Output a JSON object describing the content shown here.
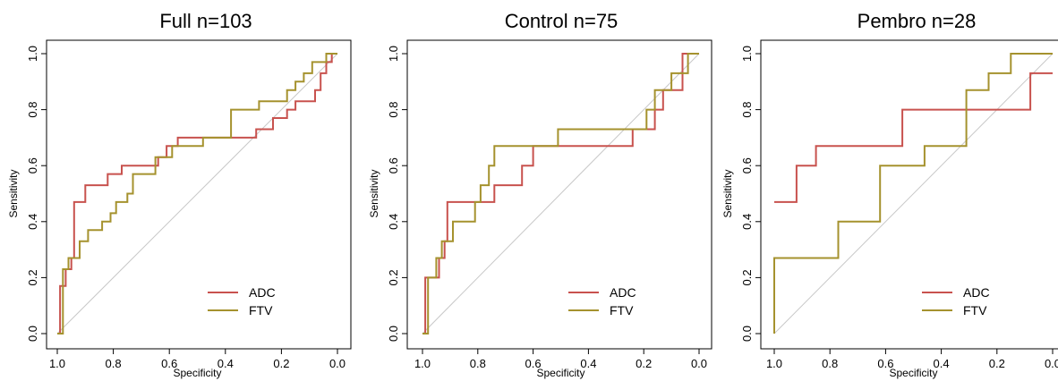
{
  "chart_data": [
    {
      "type": "line",
      "title": "Full n=103",
      "xlabel": "Specificity",
      "ylabel": "Sensitivity",
      "xlim": [
        1.0,
        0.0
      ],
      "ylim": [
        0.0,
        1.0
      ],
      "x_ticks": [
        "1.0",
        "0.8",
        "0.6",
        "0.4",
        "0.2",
        "0.0"
      ],
      "y_ticks": [
        "0.0",
        "0.2",
        "0.4",
        "0.6",
        "0.8",
        "1.0"
      ],
      "legend_position": "bottom-right",
      "grid": false,
      "series": [
        {
          "name": "ADC",
          "color": "#c8524e",
          "points": [
            [
              1.0,
              0.0
            ],
            [
              0.99,
              0.0
            ],
            [
              0.99,
              0.17
            ],
            [
              0.97,
              0.17
            ],
            [
              0.97,
              0.23
            ],
            [
              0.95,
              0.23
            ],
            [
              0.95,
              0.27
            ],
            [
              0.94,
              0.27
            ],
            [
              0.94,
              0.47
            ],
            [
              0.9,
              0.47
            ],
            [
              0.9,
              0.53
            ],
            [
              0.82,
              0.53
            ],
            [
              0.82,
              0.57
            ],
            [
              0.77,
              0.57
            ],
            [
              0.77,
              0.6
            ],
            [
              0.64,
              0.6
            ],
            [
              0.64,
              0.63
            ],
            [
              0.61,
              0.63
            ],
            [
              0.61,
              0.67
            ],
            [
              0.57,
              0.67
            ],
            [
              0.57,
              0.7
            ],
            [
              0.29,
              0.7
            ],
            [
              0.29,
              0.73
            ],
            [
              0.23,
              0.73
            ],
            [
              0.23,
              0.77
            ],
            [
              0.18,
              0.77
            ],
            [
              0.18,
              0.8
            ],
            [
              0.15,
              0.8
            ],
            [
              0.15,
              0.83
            ],
            [
              0.08,
              0.83
            ],
            [
              0.08,
              0.87
            ],
            [
              0.06,
              0.87
            ],
            [
              0.06,
              0.93
            ],
            [
              0.04,
              0.93
            ],
            [
              0.04,
              0.97
            ],
            [
              0.02,
              0.97
            ],
            [
              0.02,
              1.0
            ],
            [
              0.0,
              1.0
            ]
          ]
        },
        {
          "name": "FTV",
          "color": "#a5922e",
          "points": [
            [
              1.0,
              0.0
            ],
            [
              0.98,
              0.0
            ],
            [
              0.98,
              0.23
            ],
            [
              0.96,
              0.23
            ],
            [
              0.96,
              0.27
            ],
            [
              0.92,
              0.27
            ],
            [
              0.92,
              0.33
            ],
            [
              0.89,
              0.33
            ],
            [
              0.89,
              0.37
            ],
            [
              0.84,
              0.37
            ],
            [
              0.84,
              0.4
            ],
            [
              0.81,
              0.4
            ],
            [
              0.81,
              0.43
            ],
            [
              0.79,
              0.43
            ],
            [
              0.79,
              0.47
            ],
            [
              0.75,
              0.47
            ],
            [
              0.75,
              0.5
            ],
            [
              0.73,
              0.5
            ],
            [
              0.73,
              0.57
            ],
            [
              0.65,
              0.57
            ],
            [
              0.65,
              0.63
            ],
            [
              0.59,
              0.63
            ],
            [
              0.59,
              0.67
            ],
            [
              0.48,
              0.67
            ],
            [
              0.48,
              0.7
            ],
            [
              0.38,
              0.7
            ],
            [
              0.38,
              0.8
            ],
            [
              0.28,
              0.8
            ],
            [
              0.28,
              0.83
            ],
            [
              0.18,
              0.83
            ],
            [
              0.18,
              0.87
            ],
            [
              0.15,
              0.87
            ],
            [
              0.15,
              0.9
            ],
            [
              0.12,
              0.9
            ],
            [
              0.12,
              0.93
            ],
            [
              0.09,
              0.93
            ],
            [
              0.09,
              0.97
            ],
            [
              0.04,
              0.97
            ],
            [
              0.04,
              1.0
            ],
            [
              0.0,
              1.0
            ]
          ]
        }
      ]
    },
    {
      "type": "line",
      "title": "Control n=75",
      "xlabel": "Specificity",
      "ylabel": "Sensitivity",
      "xlim": [
        1.0,
        0.0
      ],
      "ylim": [
        0.0,
        1.0
      ],
      "x_ticks": [
        "1.0",
        "0.8",
        "0.6",
        "0.4",
        "0.2",
        "0.0"
      ],
      "y_ticks": [
        "0.0",
        "0.2",
        "0.4",
        "0.6",
        "0.8",
        "1.0"
      ],
      "legend_position": "bottom-right",
      "grid": false,
      "series": [
        {
          "name": "ADC",
          "color": "#c8524e",
          "points": [
            [
              1.0,
              0.0
            ],
            [
              0.99,
              0.0
            ],
            [
              0.99,
              0.2
            ],
            [
              0.94,
              0.2
            ],
            [
              0.94,
              0.27
            ],
            [
              0.92,
              0.27
            ],
            [
              0.92,
              0.33
            ],
            [
              0.91,
              0.33
            ],
            [
              0.91,
              0.47
            ],
            [
              0.74,
              0.47
            ],
            [
              0.74,
              0.53
            ],
            [
              0.64,
              0.53
            ],
            [
              0.64,
              0.6
            ],
            [
              0.6,
              0.6
            ],
            [
              0.6,
              0.67
            ],
            [
              0.24,
              0.67
            ],
            [
              0.24,
              0.73
            ],
            [
              0.16,
              0.73
            ],
            [
              0.16,
              0.8
            ],
            [
              0.13,
              0.8
            ],
            [
              0.13,
              0.87
            ],
            [
              0.06,
              0.87
            ],
            [
              0.06,
              1.0
            ],
            [
              0.0,
              1.0
            ]
          ]
        },
        {
          "name": "FTV",
          "color": "#a5922e",
          "points": [
            [
              1.0,
              0.0
            ],
            [
              0.98,
              0.0
            ],
            [
              0.98,
              0.2
            ],
            [
              0.95,
              0.2
            ],
            [
              0.95,
              0.27
            ],
            [
              0.93,
              0.27
            ],
            [
              0.93,
              0.33
            ],
            [
              0.89,
              0.33
            ],
            [
              0.89,
              0.4
            ],
            [
              0.81,
              0.4
            ],
            [
              0.81,
              0.47
            ],
            [
              0.79,
              0.47
            ],
            [
              0.79,
              0.53
            ],
            [
              0.76,
              0.53
            ],
            [
              0.76,
              0.6
            ],
            [
              0.74,
              0.6
            ],
            [
              0.74,
              0.67
            ],
            [
              0.51,
              0.67
            ],
            [
              0.51,
              0.73
            ],
            [
              0.19,
              0.73
            ],
            [
              0.19,
              0.8
            ],
            [
              0.16,
              0.8
            ],
            [
              0.16,
              0.87
            ],
            [
              0.1,
              0.87
            ],
            [
              0.1,
              0.93
            ],
            [
              0.04,
              0.93
            ],
            [
              0.04,
              1.0
            ],
            [
              0.0,
              1.0
            ]
          ]
        }
      ]
    },
    {
      "type": "line",
      "title": "Pembro n=28",
      "xlabel": "Specificity",
      "ylabel": "Sensitivity",
      "xlim": [
        1.0,
        0.0
      ],
      "ylim": [
        0.0,
        1.0
      ],
      "x_ticks": [
        "1.0",
        "0.8",
        "0.6",
        "0.4",
        "0.2",
        "0.0"
      ],
      "y_ticks": [
        "0.0",
        "0.2",
        "0.4",
        "0.6",
        "0.8",
        "1.0"
      ],
      "legend_position": "bottom-right",
      "grid": false,
      "series": [
        {
          "name": "ADC",
          "color": "#c8524e",
          "points": [
            [
              1.0,
              0.47
            ],
            [
              0.92,
              0.47
            ],
            [
              0.92,
              0.6
            ],
            [
              0.85,
              0.6
            ],
            [
              0.85,
              0.67
            ],
            [
              0.54,
              0.67
            ],
            [
              0.54,
              0.8
            ],
            [
              0.08,
              0.8
            ],
            [
              0.08,
              0.93
            ],
            [
              0.0,
              0.93
            ]
          ]
        },
        {
          "name": "FTV",
          "color": "#a5922e",
          "points": [
            [
              1.0,
              0.0
            ],
            [
              1.0,
              0.27
            ],
            [
              0.77,
              0.27
            ],
            [
              0.77,
              0.4
            ],
            [
              0.62,
              0.4
            ],
            [
              0.62,
              0.6
            ],
            [
              0.46,
              0.6
            ],
            [
              0.46,
              0.67
            ],
            [
              0.31,
              0.67
            ],
            [
              0.31,
              0.87
            ],
            [
              0.23,
              0.87
            ],
            [
              0.23,
              0.93
            ],
            [
              0.15,
              0.93
            ],
            [
              0.15,
              1.0
            ],
            [
              0.0,
              1.0
            ]
          ]
        }
      ]
    }
  ]
}
